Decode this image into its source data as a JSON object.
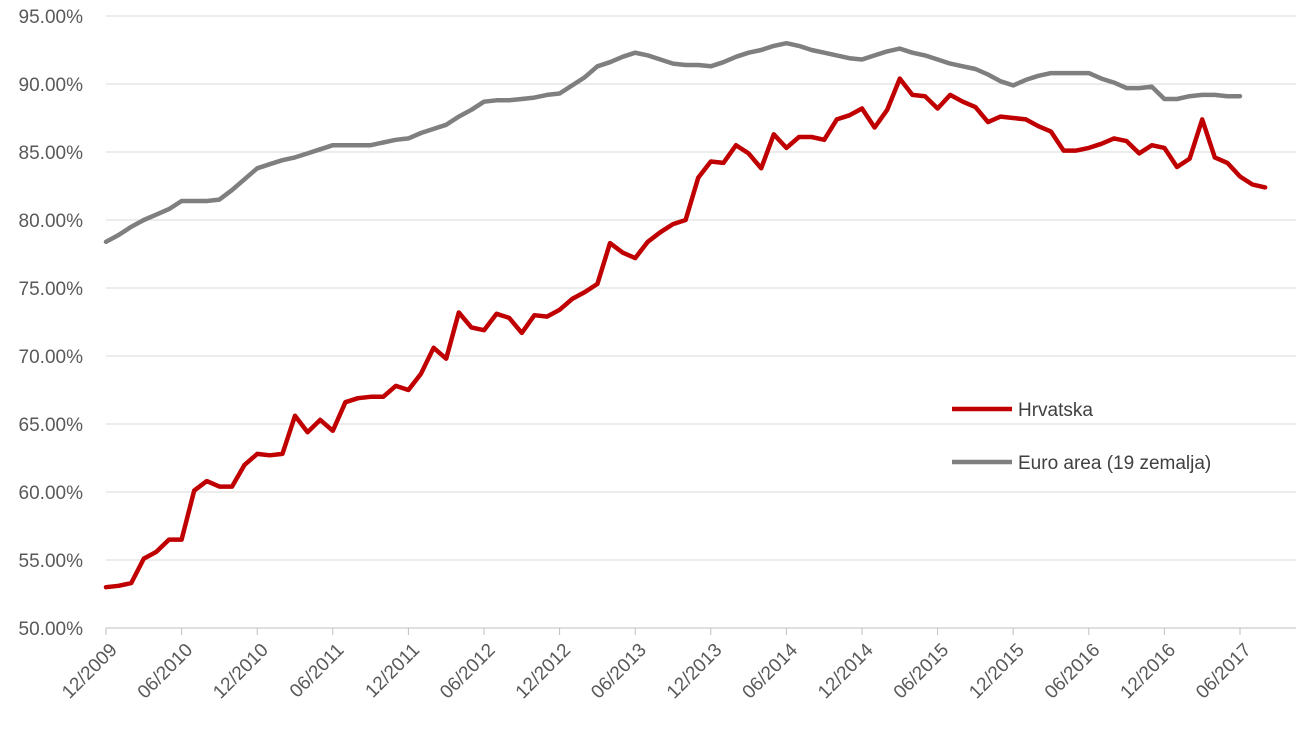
{
  "chart_data": {
    "type": "line",
    "title": "",
    "xlabel": "",
    "ylabel": "",
    "ylim": [
      0.5,
      0.95
    ],
    "grid": "horizontal",
    "legend_position": "right",
    "y_ticks": [
      "50.00%",
      "55.00%",
      "60.00%",
      "65.00%",
      "70.00%",
      "75.00%",
      "80.00%",
      "85.00%",
      "90.00%",
      "95.00%"
    ],
    "y_tick_values": [
      0.5,
      0.55,
      0.6,
      0.65,
      0.7,
      0.75,
      0.8,
      0.85,
      0.9,
      0.95
    ],
    "x_ticks": [
      "12/2009",
      "06/2010",
      "12/2010",
      "06/2011",
      "12/2011",
      "06/2012",
      "12/2012",
      "06/2013",
      "12/2013",
      "06/2014",
      "12/2014",
      "06/2015",
      "12/2015",
      "06/2016",
      "12/2016",
      "06/2017"
    ],
    "x_start": "12/2009",
    "frequency": "monthly",
    "series": [
      {
        "name": "Hrvatska",
        "color": "#C00000",
        "values": [
          0.53,
          0.531,
          0.533,
          0.551,
          0.556,
          0.565,
          0.565,
          0.601,
          0.608,
          0.604,
          0.604,
          0.62,
          0.628,
          0.627,
          0.628,
          0.656,
          0.644,
          0.653,
          0.645,
          0.666,
          0.669,
          0.67,
          0.67,
          0.678,
          0.675,
          0.687,
          0.706,
          0.698,
          0.732,
          0.721,
          0.719,
          0.731,
          0.728,
          0.717,
          0.73,
          0.729,
          0.734,
          0.742,
          0.747,
          0.753,
          0.783,
          0.776,
          0.772,
          0.784,
          0.791,
          0.797,
          0.8,
          0.831,
          0.843,
          0.842,
          0.855,
          0.849,
          0.838,
          0.863,
          0.853,
          0.861,
          0.861,
          0.859,
          0.874,
          0.877,
          0.882,
          0.868,
          0.881,
          0.904,
          0.892,
          0.891,
          0.882,
          0.892,
          0.887,
          0.883,
          0.872,
          0.876,
          0.875,
          0.874,
          0.869,
          0.865,
          0.851,
          0.851,
          0.853,
          0.856,
          0.86,
          0.858,
          0.849,
          0.855,
          0.853,
          0.839,
          0.845,
          0.874,
          0.846,
          0.842,
          0.832,
          0.826,
          0.824
        ]
      },
      {
        "name": "Euro area (19 zemalja)",
        "color": "#7F7F7F",
        "values": [
          0.784,
          0.789,
          0.795,
          0.8,
          0.804,
          0.808,
          0.814,
          0.814,
          0.814,
          0.815,
          0.822,
          0.83,
          0.838,
          0.841,
          0.844,
          0.846,
          0.849,
          0.852,
          0.855,
          0.855,
          0.855,
          0.855,
          0.857,
          0.859,
          0.86,
          0.864,
          0.867,
          0.87,
          0.876,
          0.881,
          0.887,
          0.888,
          0.888,
          0.889,
          0.89,
          0.892,
          0.893,
          0.899,
          0.905,
          0.913,
          0.916,
          0.92,
          0.923,
          0.921,
          0.918,
          0.915,
          0.914,
          0.914,
          0.913,
          0.916,
          0.92,
          0.923,
          0.925,
          0.928,
          0.93,
          0.928,
          0.925,
          0.923,
          0.921,
          0.919,
          0.918,
          0.921,
          0.924,
          0.926,
          0.923,
          0.921,
          0.918,
          0.915,
          0.913,
          0.911,
          0.907,
          0.902,
          0.899,
          0.903,
          0.906,
          0.908,
          0.908,
          0.908,
          0.908,
          0.904,
          0.901,
          0.897,
          0.897,
          0.898,
          0.889,
          0.889,
          0.891,
          0.892,
          0.892,
          0.891,
          0.891
        ]
      }
    ]
  }
}
